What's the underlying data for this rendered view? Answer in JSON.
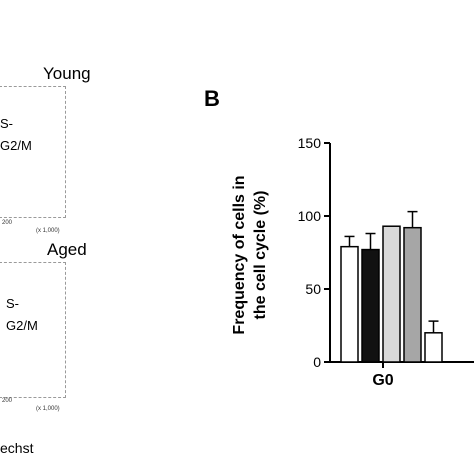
{
  "panel_a": {
    "top_group": "Young",
    "bottom_group": "Aged",
    "top_gate_s": "S-",
    "top_gate_g2m": "G2/M",
    "bottom_gate_s": "S-",
    "bottom_gate_g2m": "G2/M",
    "top_tick": "200",
    "top_scale": "(x 1,000)",
    "bottom_tick": "200",
    "bottom_scale": "(x 1,000)",
    "x_axis_partial": "echst"
  },
  "chart_data": {
    "type": "bar",
    "panel_letter": "B",
    "ylabel_line1": "Frequency of cells in",
    "ylabel_line2": "the cell cycle (%)",
    "ylim": [
      0,
      150
    ],
    "yticks": [
      0,
      50,
      100,
      150
    ],
    "categories": [
      "G0",
      ""
    ],
    "bar_colors": [
      "#ffffff",
      "#111111",
      "#d9d9d9",
      "#a6a6a6"
    ],
    "series": [
      {
        "values": [
          79,
          20
        ],
        "errors": [
          7,
          8
        ]
      },
      {
        "values": [
          77,
          null
        ],
        "errors": [
          11,
          null
        ]
      },
      {
        "values": [
          93,
          null
        ],
        "errors": [
          0,
          null
        ]
      },
      {
        "values": [
          92,
          null
        ],
        "errors": [
          11,
          null
        ]
      }
    ]
  }
}
